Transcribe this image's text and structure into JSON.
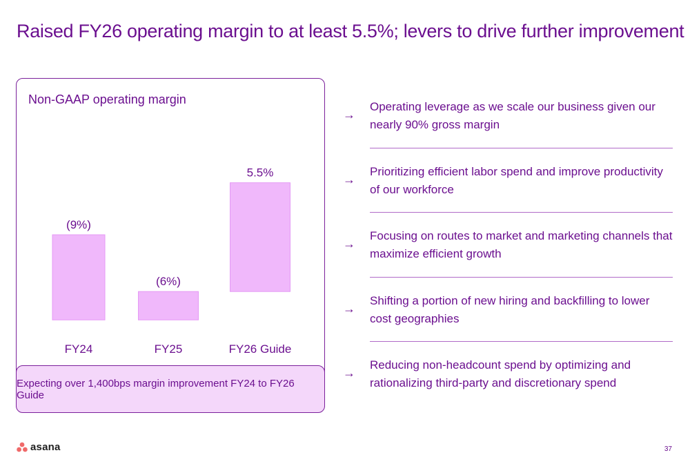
{
  "slide": {
    "title": "Raised FY26 operating margin to at least 5.5%; levers to drive further improvement",
    "page_number": "37"
  },
  "chart_card": {
    "footnote": "Expecting over 1,400bps margin improvement FY24 to FY26 Guide"
  },
  "chart_data": {
    "type": "bar",
    "subtype": "waterfall",
    "title": "Non-GAAP operating margin",
    "categories": [
      "FY24",
      "FY25",
      "FY26 Guide"
    ],
    "values": [
      -9,
      -6,
      5.5
    ],
    "data_labels": [
      "(9%)",
      "(6%)",
      "5.5%"
    ],
    "unit": "%",
    "grid": false,
    "legend": "none",
    "colors": {
      "bar": "#f0b8fb",
      "bar_border": "#e49af5",
      "text": "#6b0f8f"
    }
  },
  "levers": [
    {
      "text": "Operating leverage as we scale our business given our nearly 90% gross margin"
    },
    {
      "text": "Prioritizing efficient labor spend and improve productivity of our workforce"
    },
    {
      "text": "Focusing on routes to market and marketing channels that maximize efficient growth"
    },
    {
      "text": "Shifting a portion of new hiring and backfilling to lower cost geographies"
    },
    {
      "text": "Reducing non-headcount spend by optimizing and rationalizing third-party and discretionary spend"
    }
  ],
  "arrow_glyph": "→",
  "icons": {
    "lever_arrow": "arrow-right-icon",
    "logo": "asana-logo-icon"
  },
  "logo": {
    "text": "asana",
    "dot_color": "#f06a6a"
  },
  "colors": {
    "accent": "#6b0f8f",
    "card_border": "#7a1f9a",
    "footnote_bg": "#f4d7fa"
  }
}
